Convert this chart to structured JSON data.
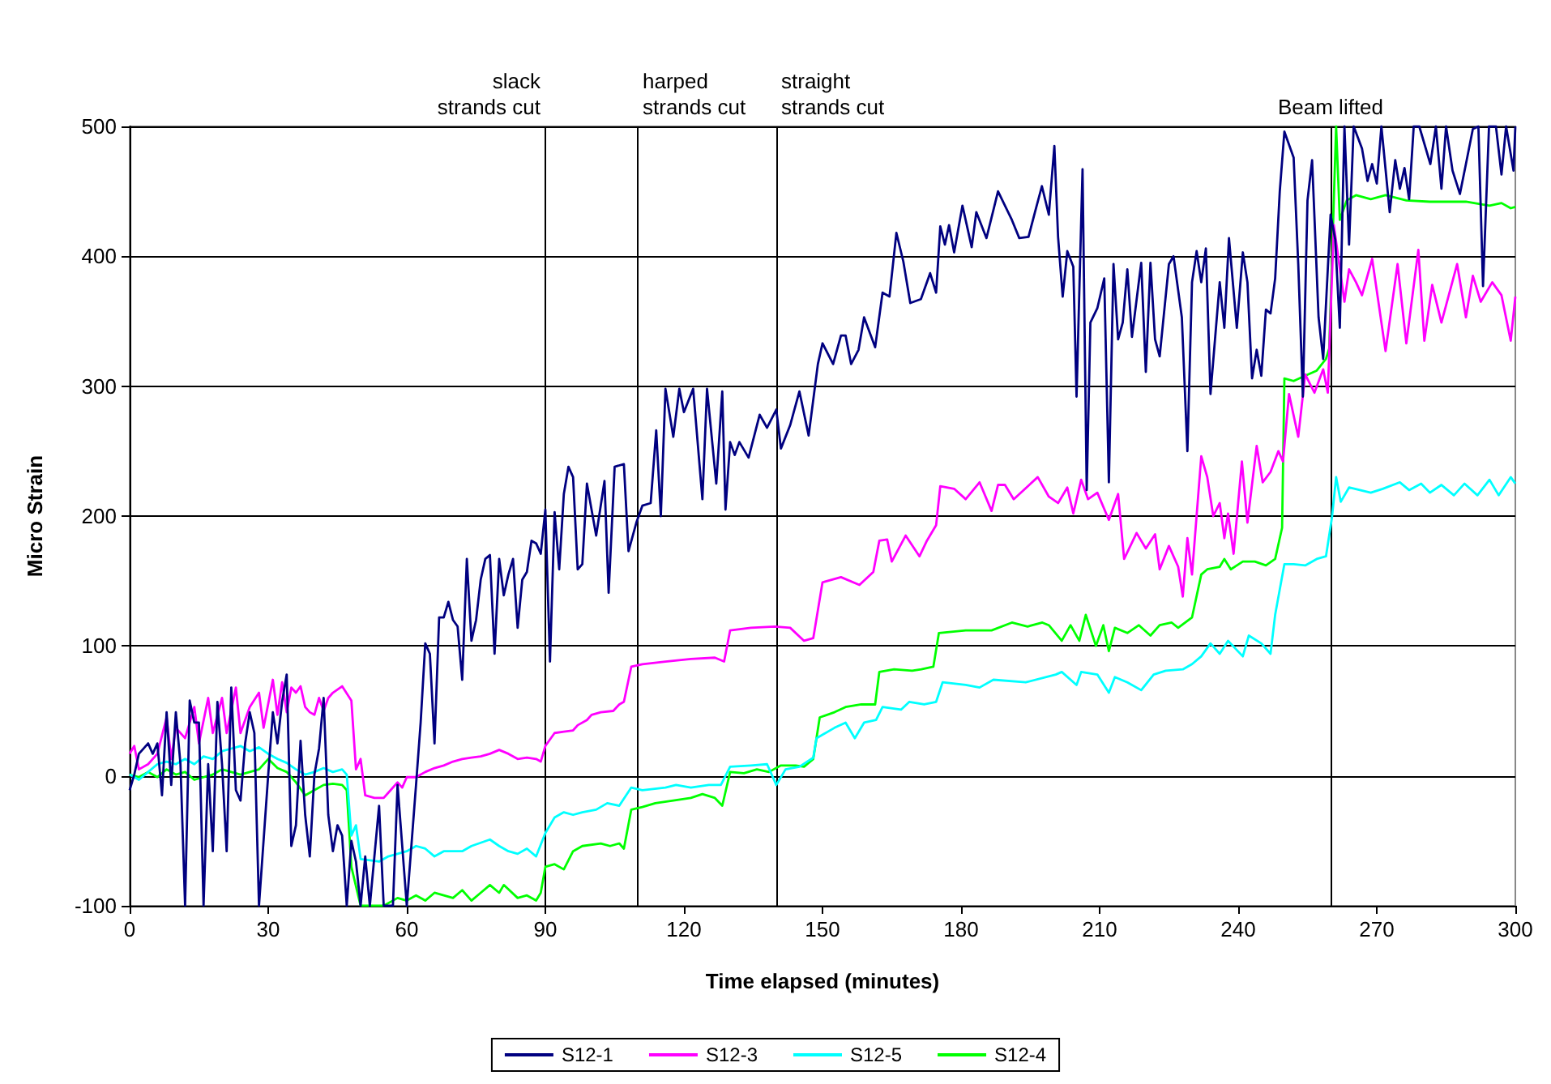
{
  "chart_data": {
    "type": "line",
    "xlabel": "Time elapsed (minutes)",
    "ylabel": "Micro Strain",
    "xlim": [
      0,
      300
    ],
    "xticks": [
      0,
      30,
      60,
      90,
      120,
      150,
      180,
      210,
      240,
      270,
      300
    ],
    "ylim": [
      -100,
      500
    ],
    "yticks": [
      -100,
      0,
      100,
      200,
      300,
      400,
      500
    ],
    "grid": "y",
    "legend": "bottom",
    "marker": "none",
    "line_style": "solid",
    "ref_lines": [
      {
        "axis": "x",
        "value": 90,
        "label": "slack strands cut"
      },
      {
        "axis": "x",
        "value": 110,
        "label": "harped strands cut"
      },
      {
        "axis": "x",
        "value": 140,
        "label": "straight strands cut"
      },
      {
        "axis": "x",
        "value": 260,
        "label": "Beam lifted"
      }
    ],
    "series": [
      {
        "name": "S12-1",
        "color": "#000080",
        "x": [
          0,
          1,
          2,
          4,
          5,
          6,
          7,
          8,
          9,
          10,
          11,
          12,
          13,
          14,
          15,
          16,
          17,
          18,
          19,
          20,
          21,
          22,
          23,
          24,
          25,
          26,
          27,
          28,
          30,
          31,
          32,
          33,
          34,
          35,
          36,
          37,
          38,
          39,
          40,
          41,
          42,
          43,
          44,
          45,
          46,
          47,
          48,
          49,
          50,
          51,
          52,
          54,
          55,
          57,
          58,
          60,
          62,
          63,
          64,
          65,
          66,
          67,
          68,
          69,
          70,
          71,
          72,
          73,
          74,
          75,
          76,
          77,
          78,
          79,
          80,
          81,
          82,
          83,
          84,
          85,
          86,
          87,
          88,
          89,
          90,
          91,
          92,
          93,
          94,
          95,
          96,
          97,
          98,
          99,
          101,
          102.8,
          103.7,
          105,
          107,
          108,
          109.7,
          111,
          112.8,
          114,
          115,
          116,
          117.7,
          119,
          120,
          122,
          124,
          125,
          127,
          128.3,
          129,
          130,
          131,
          132,
          134,
          136.4,
          138,
          140,
          141,
          143,
          145,
          147,
          149,
          150,
          152.3,
          154,
          155,
          156.2,
          157.8,
          159,
          161.4,
          163,
          164.5,
          166,
          167.5,
          169,
          171.3,
          173.3,
          174.6,
          175.5,
          176.5,
          177.4,
          178.5,
          180.3,
          182.3,
          183.3,
          185.5,
          188,
          191,
          192.6,
          194.6,
          196,
          197.5,
          199,
          200.2,
          201,
          202,
          203,
          204.3,
          205,
          206.3,
          207.2,
          208,
          209.5,
          211,
          212,
          213,
          214,
          215,
          216,
          217,
          219,
          220,
          221,
          222,
          223,
          225,
          226,
          227.8,
          229,
          230,
          231,
          232,
          233,
          234,
          236,
          237,
          238,
          239.7,
          241,
          242,
          243,
          244,
          245,
          246,
          247,
          248,
          249,
          250,
          252,
          253,
          254,
          255,
          256,
          257.4,
          258.4,
          260,
          261,
          262,
          263,
          264,
          265,
          266.8,
          268,
          269,
          270,
          271,
          272.8,
          274,
          275,
          276,
          277,
          278,
          279.2,
          281.6,
          282.8,
          284,
          285,
          286.4,
          288,
          289.3,
          290.8,
          292,
          293,
          294.3,
          295.8,
          297,
          298,
          299.6,
          300
        ],
        "values": [
          -11,
          1,
          17,
          25,
          17,
          25,
          -15,
          49,
          -7,
          49,
          9,
          -100,
          58,
          41,
          41,
          -100,
          9,
          -58,
          57,
          9,
          -58,
          68,
          -11,
          -19,
          25,
          49,
          33,
          -100,
          1,
          49,
          25,
          57,
          78,
          -54,
          -38,
          27,
          -30,
          -62,
          1,
          21,
          60,
          -30,
          -58,
          -38,
          -46,
          -100,
          -50,
          -66,
          -100,
          -62,
          -100,
          -23,
          -100,
          -100,
          -7,
          -100,
          -7,
          41,
          102,
          94,
          25,
          122,
          122,
          134,
          120,
          115,
          74,
          167,
          104,
          120,
          151,
          167,
          170,
          94,
          167,
          139,
          155,
          167,
          114,
          151,
          157,
          181,
          179,
          171,
          205,
          88,
          203,
          159,
          217,
          238,
          230,
          159,
          163,
          225,
          185,
          227,
          141,
          238,
          240,
          173,
          195,
          208,
          210,
          266,
          200,
          298,
          261,
          298,
          280,
          298,
          213,
          298,
          225,
          296,
          205,
          257,
          247,
          257,
          245,
          278,
          268,
          282,
          252,
          270,
          296,
          262,
          317,
          333,
          317,
          339,
          339,
          317,
          328,
          353,
          330,
          372,
          369,
          418,
          396,
          364,
          367,
          387,
          372,
          423,
          409,
          424,
          403,
          439,
          407,
          434,
          414,
          450,
          428,
          414,
          415,
          434,
          454,
          432,
          485,
          415,
          369,
          404,
          392,
          292,
          467,
          220,
          349,
          360,
          383,
          226,
          394,
          336,
          349,
          390,
          338,
          395,
          311,
          395,
          336,
          323,
          394,
          400,
          353,
          250,
          380,
          404,
          380,
          406,
          294,
          380,
          345,
          414,
          345,
          403,
          380,
          306,
          328,
          308,
          359,
          356,
          383,
          450,
          496,
          476,
          394,
          292,
          443,
          474,
          353,
          321,
          432,
          413,
          345,
          500,
          409,
          500,
          483,
          458,
          471,
          456,
          500,
          434,
          474,
          452,
          468,
          444,
          500,
          500,
          471,
          500,
          452,
          500,
          466,
          448,
          471,
          498,
          500,
          377,
          500,
          500,
          463,
          500,
          466,
          500
        ]
      },
      {
        "name": "S12-3",
        "color": "#ff00ff",
        "x": [
          0,
          1,
          2,
          4,
          6,
          8,
          9,
          10,
          12,
          14,
          15,
          17,
          18,
          20,
          21,
          23,
          24,
          26,
          28,
          29,
          31,
          32,
          33,
          34,
          35,
          36,
          37,
          38,
          39,
          40,
          41,
          42,
          43,
          44,
          46,
          48,
          49,
          50,
          51,
          53,
          55,
          56,
          58,
          59,
          60,
          62,
          64,
          66,
          68,
          70,
          72,
          74,
          76,
          78,
          80,
          82,
          84,
          86,
          88,
          89,
          90,
          92,
          94,
          96,
          97,
          99,
          100,
          102,
          104.7,
          106,
          107,
          108.6,
          111,
          116,
          121.5,
          126.7,
          128.7,
          130,
          134.5,
          139.7,
          143,
          146,
          148,
          150,
          154,
          158,
          161,
          162.3,
          164,
          165,
          168,
          171,
          172.6,
          174.6,
          175.5,
          178.5,
          181,
          184,
          186.6,
          188,
          189.5,
          191.4,
          196.6,
          199,
          201,
          203,
          204.3,
          206,
          207.5,
          209.5,
          212,
          214,
          215.3,
          218,
          220,
          222,
          223,
          225,
          227,
          228,
          229,
          230,
          232,
          233.3,
          234.6,
          236,
          237,
          237.8,
          239,
          240.8,
          242,
          244,
          245.3,
          247,
          248.7,
          249.7,
          251,
          253,
          254.5,
          256.5,
          258.4,
          259.4,
          260.7,
          263,
          264,
          265.5,
          266.8,
          269,
          271.9,
          274.5,
          276.4,
          279,
          280.3,
          282,
          284,
          287.4,
          289.3,
          290.8,
          292.5,
          295,
          297,
          299,
          300
        ],
        "values": [
          17,
          23,
          5,
          9,
          17,
          45,
          13,
          37,
          29,
          53,
          25,
          60,
          33,
          60,
          33,
          68,
          33,
          53,
          64,
          37,
          74,
          47,
          72,
          49,
          68,
          64,
          69,
          53,
          49,
          47,
          60,
          50,
          60,
          64,
          69,
          58,
          5,
          13,
          -15,
          -17,
          -17,
          -13,
          -5,
          -9,
          -1,
          -1,
          3,
          6,
          8,
          11,
          13,
          14,
          15,
          17,
          20,
          17,
          13,
          14,
          13,
          11,
          23,
          33,
          34,
          35,
          39,
          43,
          47,
          49,
          50,
          55,
          57,
          84,
          86,
          88,
          90,
          91,
          88,
          112,
          114,
          115,
          114,
          104,
          106,
          149,
          153,
          147,
          157,
          181,
          182,
          165,
          185,
          169,
          181,
          193,
          223,
          221,
          213,
          226,
          204,
          224,
          224,
          213,
          230,
          215,
          210,
          222,
          202,
          228,
          213,
          218,
          197,
          217,
          167,
          187,
          175,
          186,
          159,
          177,
          161,
          138,
          183,
          155,
          246,
          230,
          200,
          210,
          183,
          202,
          171,
          242,
          195,
          254,
          226,
          234,
          250,
          242,
          294,
          261,
          309,
          295,
          313,
          295,
          424,
          365,
          390,
          380,
          370,
          398,
          327,
          394,
          333,
          405,
          335,
          378,
          349,
          394,
          353,
          385,
          365,
          380,
          370,
          335,
          369
        ]
      },
      {
        "name": "S12-5",
        "color": "#00ffff",
        "x": [
          0,
          2,
          4,
          6,
          8,
          10,
          12,
          14,
          16,
          18,
          20,
          22,
          24,
          26,
          28,
          30,
          32,
          34,
          36,
          38,
          40,
          42,
          44,
          46,
          47,
          48,
          49,
          50,
          52,
          54,
          56,
          58,
          60,
          62,
          64,
          66,
          68,
          70,
          72,
          74,
          78,
          80,
          82,
          84,
          86,
          88,
          90,
          92,
          94,
          96,
          98,
          101,
          103.4,
          106,
          108.6,
          111,
          116,
          118.3,
          121.5,
          125.4,
          128,
          130,
          134.5,
          138,
          140,
          142,
          145,
          148,
          148.7,
          152.6,
          155,
          157,
          159,
          161.6,
          163,
          167,
          168.8,
          172,
          174.6,
          176,
          181,
          184,
          187,
          194,
          200.5,
          201.8,
          205,
          206,
          209.5,
          212,
          213.3,
          216,
          219,
          221.7,
          224.3,
          228,
          230,
          232,
          234,
          236,
          237.8,
          241,
          242.3,
          245,
          247,
          248,
          250,
          252,
          254.5,
          257,
          259,
          260.3,
          261.2,
          262.2,
          264,
          268.7,
          271.3,
          275,
          277,
          279.6,
          281.5,
          284,
          286.7,
          289,
          291.8,
          294.4,
          296.4,
          299,
          300
        ],
        "values": [
          1,
          -3,
          3,
          9,
          11,
          9,
          13,
          9,
          15,
          13,
          19,
          21,
          23,
          19,
          22,
          17,
          13,
          10,
          5,
          1,
          3,
          6,
          3,
          5,
          1,
          -46,
          -38,
          -64,
          -65,
          -66,
          -62,
          -60,
          -58,
          -54,
          -56,
          -62,
          -58,
          -58,
          -58,
          -54,
          -49,
          -54,
          -58,
          -60,
          -56,
          -62,
          -44,
          -32,
          -28,
          -30,
          -28,
          -26,
          -21,
          -23,
          -9,
          -11,
          -9,
          -7,
          -9,
          -7,
          -7,
          7,
          8,
          9,
          -7,
          5,
          7,
          14,
          29,
          37,
          41,
          29,
          41,
          43,
          53,
          51,
          57,
          55,
          57,
          72,
          70,
          68,
          74,
          72,
          78,
          80,
          70,
          80,
          78,
          64,
          76,
          72,
          66,
          78,
          81,
          82,
          86,
          92,
          102,
          94,
          104,
          92,
          108,
          102,
          94,
          124,
          163,
          163,
          162,
          167,
          169,
          199,
          230,
          211,
          222,
          218,
          221,
          226,
          220,
          225,
          218,
          224,
          216,
          225,
          216,
          228,
          216,
          230,
          225
        ]
      },
      {
        "name": "S12-4",
        "color": "#00ff00",
        "x": [
          0,
          2,
          4,
          6,
          8,
          10,
          12,
          14,
          16,
          18,
          20,
          22,
          24,
          26,
          28,
          30,
          32,
          34,
          36,
          38,
          40,
          42,
          44,
          46,
          47,
          48,
          50,
          52,
          55,
          58,
          60,
          62,
          64,
          66,
          68,
          70,
          72,
          74,
          76,
          78,
          80,
          81,
          84,
          86,
          88,
          89,
          90,
          92,
          94,
          96,
          98,
          102,
          104,
          106,
          107,
          108.6,
          111,
          113.8,
          117.7,
          121.5,
          124,
          126.7,
          128.3,
          130,
          133,
          135.8,
          138.4,
          141,
          144.2,
          146,
          148,
          149.4,
          152.6,
          155,
          158.4,
          161.4,
          162.3,
          165.5,
          169.4,
          171.4,
          174,
          175.2,
          181,
          186.6,
          191,
          194.4,
          197.6,
          199,
          201.8,
          203.7,
          205.6,
          207,
          209.2,
          210.8,
          212,
          213.3,
          216,
          218.5,
          221,
          223,
          225.6,
          227,
          230,
          232,
          233.3,
          236,
          237,
          238.4,
          241,
          243.6,
          246,
          248,
          249.5,
          250,
          252,
          254.5,
          257,
          259,
          259.7,
          261.2,
          262,
          263.5,
          265.5,
          268.7,
          271.9,
          276.4,
          281.5,
          289.3,
          294.4,
          297,
          299,
          300
        ],
        "values": [
          1,
          -1,
          3,
          -1,
          5,
          1,
          3,
          -3,
          -1,
          1,
          5,
          3,
          1,
          3,
          5,
          13,
          6,
          3,
          -5,
          -15,
          -11,
          -7,
          -6,
          -7,
          -11,
          -70,
          -100,
          -100,
          -100,
          -94,
          -96,
          -92,
          -96,
          -90,
          -92,
          -94,
          -88,
          -96,
          -90,
          -84,
          -90,
          -84,
          -94,
          -92,
          -96,
          -90,
          -70,
          -68,
          -72,
          -58,
          -54,
          -52,
          -54,
          -52,
          -56,
          -26,
          -24,
          -21,
          -19,
          -17,
          -14,
          -17,
          -23,
          3,
          2,
          5,
          3,
          8,
          8,
          7,
          13,
          45,
          49,
          53,
          55,
          55,
          80,
          82,
          81,
          82,
          84,
          110,
          112,
          112,
          118,
          115,
          118,
          116,
          104,
          116,
          104,
          124,
          100,
          116,
          96,
          114,
          110,
          116,
          108,
          116,
          118,
          114,
          122,
          155,
          159,
          161,
          167,
          159,
          165,
          165,
          162,
          167,
          191,
          306,
          304,
          308,
          312,
          321,
          329,
          500,
          428,
          443,
          447,
          444,
          447,
          443,
          442,
          442,
          439,
          441,
          437,
          438
        ]
      }
    ]
  }
}
